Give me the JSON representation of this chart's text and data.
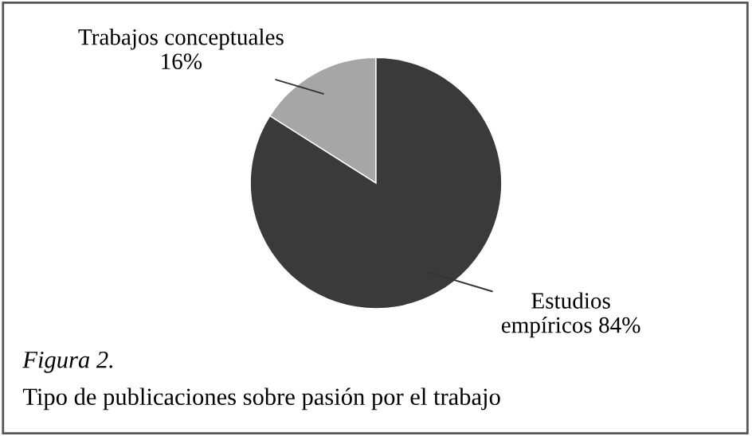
{
  "chart_data": {
    "type": "pie",
    "categories": [
      "Trabajos conceptuales",
      "Estudios empíricos"
    ],
    "values": [
      16,
      84
    ],
    "colors": [
      "#a6a6a6",
      "#3a3a3a"
    ],
    "value_labels": [
      "16%",
      "84%"
    ],
    "annotations": [
      "Figura 2.",
      "Tipo de publicaciones sobre pasión por el trabajo"
    ],
    "legend": false
  }
}
